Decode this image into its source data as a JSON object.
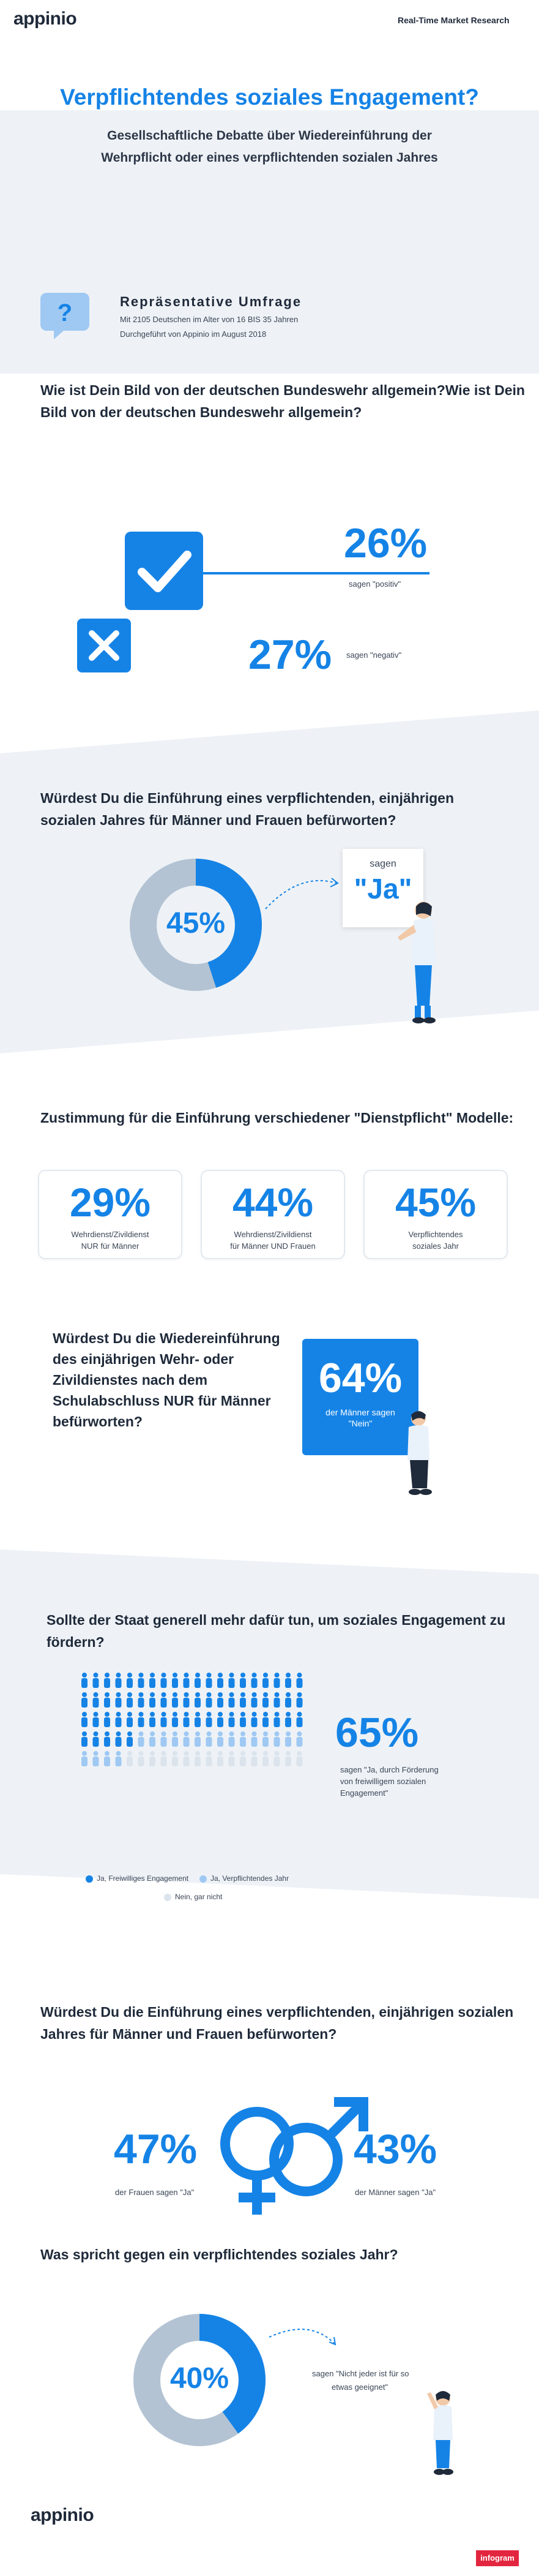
{
  "header": {
    "logo": "appinio",
    "tagline": "Real-Time Market Research"
  },
  "hero": {
    "title": "Verpflichtendes soziales Engagement?",
    "subtitle_line1": "Gesellschaftliche Debatte über Wiedereinführung der",
    "subtitle_line2": "Wehrpflicht oder eines verpflichtenden sozialen Jahres"
  },
  "survey": {
    "icon": "question-bubble-icon",
    "heading": "Repräsentative Umfrage",
    "line1": "Mit 2105 Deutschen im Alter von 16 BIS 35 Jahren",
    "line2": "Durchgeführt von Appinio im August 2018"
  },
  "q1": {
    "question_line1": "Wie ist Dein Bild von der deutschen Bundeswehr allgemein?Wie ist Dein",
    "question_line2": "Bild von der deutschen Bundeswehr allgemein?",
    "positive": {
      "value": "26%",
      "label": "sagen \"positiv\"",
      "icon": "checkmark-icon"
    },
    "negative": {
      "value": "27%",
      "label": "sagen \"negativ\"",
      "icon": "cross-icon"
    }
  },
  "q2": {
    "question_line1": "Würdest Du die Einführung eines verpflichtenden, einjährigen",
    "question_line2": "sozialen Jahres für Männer und Frauen befürworten?",
    "value": "45%",
    "share": 0.45,
    "sign_top": "sagen",
    "sign_main": "\"Ja\""
  },
  "q3": {
    "question": "Zustimmung für die Einführung verschiedener \"Dienstpflicht\" Modelle:",
    "cards": [
      {
        "value": "29%",
        "line1": "Wehrdienst/Zivildienst",
        "line2": "NUR für Männer"
      },
      {
        "value": "44%",
        "line1": "Wehrdienst/Zivildienst",
        "line2": "für Männer UND Frauen"
      },
      {
        "value": "45%",
        "line1": "Verpflichtendes",
        "line2": "soziales Jahr"
      }
    ]
  },
  "q4": {
    "question_line1": "Würdest Du die Wiedereinführung",
    "question_line2": "des einjährigen Wehr- oder",
    "question_line3": "Zivildienstes nach dem",
    "question_line4": "Schulabschluss NUR für Männer",
    "question_line5": "befürworten?",
    "value": "64%",
    "label_line1": "der Männer sagen",
    "label_line2": "\"Nein\""
  },
  "q5": {
    "question_line1": "Sollte der Staat generell mehr dafür tun, um soziales Engagement zu",
    "question_line2": "fördern?",
    "value": "65%",
    "label_line1": "sagen \"Ja, durch Förderung",
    "label_line2": "von freiwilligem sozialen",
    "label_line3": "Engagement\"",
    "people_total": 100,
    "people_freiwillig": 65,
    "people_verpflichtend": 19,
    "legend": [
      {
        "label": "Ja, Freiwilliges Engagement",
        "color": "#1583e6"
      },
      {
        "label": "Ja, Verpflichtendes Jahr",
        "color": "#9fc9f3"
      },
      {
        "label": "Nein, gar nicht",
        "color": "#dbe3ec"
      }
    ]
  },
  "q6": {
    "question_line1": "Würdest Du die Einführung eines verpflichtenden, einjährigen sozialen",
    "question_line2": "Jahres für Männer und Frauen befürworten?",
    "female": {
      "value": "47%",
      "label": "der Frauen sagen \"Ja\""
    },
    "male": {
      "value": "43%",
      "label": "der Männer sagen \"Ja\""
    }
  },
  "q7": {
    "question": "Was spricht gegen ein verpflichtendes soziales Jahr?",
    "value": "40%",
    "share": 0.4,
    "label_line1": "sagen \"Nicht jeder ist für so",
    "label_line2": "etwas geeignet\""
  },
  "footer": {
    "logo": "appinio",
    "badge": "infogram"
  },
  "colors": {
    "accent": "#1583e6",
    "light_blue": "#9fc9f3",
    "grey_ring": "#b3c3d3",
    "band": "#eef2f6"
  }
}
